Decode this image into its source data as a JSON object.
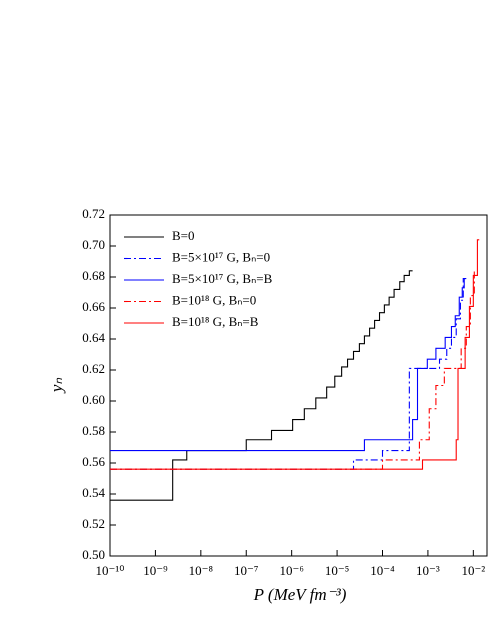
{
  "chart_data": {
    "type": "line",
    "xscale": "log",
    "drawstyle": "steps-post",
    "xlabel": "P (MeV fm⁻³)",
    "ylabel": "yₙ",
    "xlim": [
      1e-10,
      0.02
    ],
    "ylim": [
      0.5,
      0.72
    ],
    "xticks": [
      {
        "value": 1e-10,
        "label": "10⁻¹⁰"
      },
      {
        "value": 1e-09,
        "label": "10⁻⁹"
      },
      {
        "value": 1e-08,
        "label": "10⁻⁸"
      },
      {
        "value": 1e-07,
        "label": "10⁻⁷"
      },
      {
        "value": 1e-06,
        "label": "10⁻⁶"
      },
      {
        "value": 1e-05,
        "label": "10⁻⁵"
      },
      {
        "value": 0.0001,
        "label": "10⁻⁴"
      },
      {
        "value": 0.001,
        "label": "10⁻³"
      },
      {
        "value": 0.01,
        "label": "10⁻²"
      }
    ],
    "yticks": [
      {
        "value": 0.5,
        "label": "0.50"
      },
      0.52,
      0.54,
      0.56,
      0.58,
      {
        "value": 0.6,
        "label": "0.60"
      },
      0.62,
      0.64,
      0.66,
      0.68,
      {
        "value": 0.7,
        "label": "0.70"
      },
      0.72
    ],
    "legend": "upper left",
    "series": [
      {
        "name": "B=0",
        "color": "#000000",
        "linestyle": "solid",
        "x": [
          1e-10,
          2.4e-09,
          4.9e-09,
          1e-07,
          3.6e-07,
          1.05e-06,
          1.9e-06,
          3.4e-06,
          5.9e-06,
          8.9e-06,
          1.26e-05,
          1.7e-05,
          2.3e-05,
          3.1e-05,
          4e-05,
          5.2e-05,
          6.7e-05,
          8.6e-05,
          0.00011,
          0.00014,
          0.00018,
          0.00024,
          0.0003,
          0.00039,
          0.00046
        ],
        "values": [
          0.536,
          0.562,
          0.568,
          0.575,
          0.581,
          0.588,
          0.595,
          0.602,
          0.609,
          0.616,
          0.622,
          0.627,
          0.632,
          0.637,
          0.642,
          0.647,
          0.652,
          0.657,
          0.662,
          0.667,
          0.672,
          0.677,
          0.681,
          0.684,
          0.684
        ]
      },
      {
        "name": "B=5×10¹⁷ G, Bₙ=0",
        "color": "#0000ff",
        "linestyle": "dashdot",
        "x": [
          1e-10,
          2.3e-05,
          0.0001,
          0.00039,
          0.0018,
          0.0026,
          0.0033,
          0.0042,
          0.0052,
          0.006,
          0.0066
        ],
        "values": [
          0.556,
          0.562,
          0.568,
          0.621,
          0.627,
          0.634,
          0.641,
          0.653,
          0.665,
          0.679,
          0.679
        ]
      },
      {
        "name": "B=5×10¹⁷ G, Bₙ=B",
        "color": "#0000ff",
        "linestyle": "solid",
        "x": [
          1e-10,
          4e-05,
          0.00046,
          0.00059,
          0.00097,
          0.0015,
          0.0024,
          0.0033,
          0.004,
          0.0049,
          0.0057,
          0.0063,
          0.007
        ],
        "values": [
          0.568,
          0.575,
          0.588,
          0.621,
          0.627,
          0.634,
          0.641,
          0.648,
          0.655,
          0.667,
          0.673,
          0.679,
          0.679
        ]
      },
      {
        "name": "B=10¹⁸ G, Bₙ=0",
        "color": "#ff0000",
        "linestyle": "dashdot",
        "x": [
          1e-10,
          0.0001,
          0.00065,
          0.00107,
          0.0015,
          0.0023,
          0.0054,
          0.007,
          0.0086,
          0.0105,
          0.0117
        ],
        "values": [
          0.556,
          0.562,
          0.575,
          0.595,
          0.61,
          0.621,
          0.634,
          0.648,
          0.668,
          0.684,
          0.684
        ]
      },
      {
        "name": "B=10¹⁸ G, Bₙ=B",
        "color": "#ff0000",
        "linestyle": "solid",
        "x": [
          1e-10,
          0.00076,
          0.0042,
          0.0046,
          0.0066,
          0.0082,
          0.01,
          0.0123,
          0.0135
        ],
        "values": [
          0.556,
          0.562,
          0.575,
          0.621,
          0.641,
          0.661,
          0.681,
          0.704,
          0.704
        ]
      }
    ]
  }
}
